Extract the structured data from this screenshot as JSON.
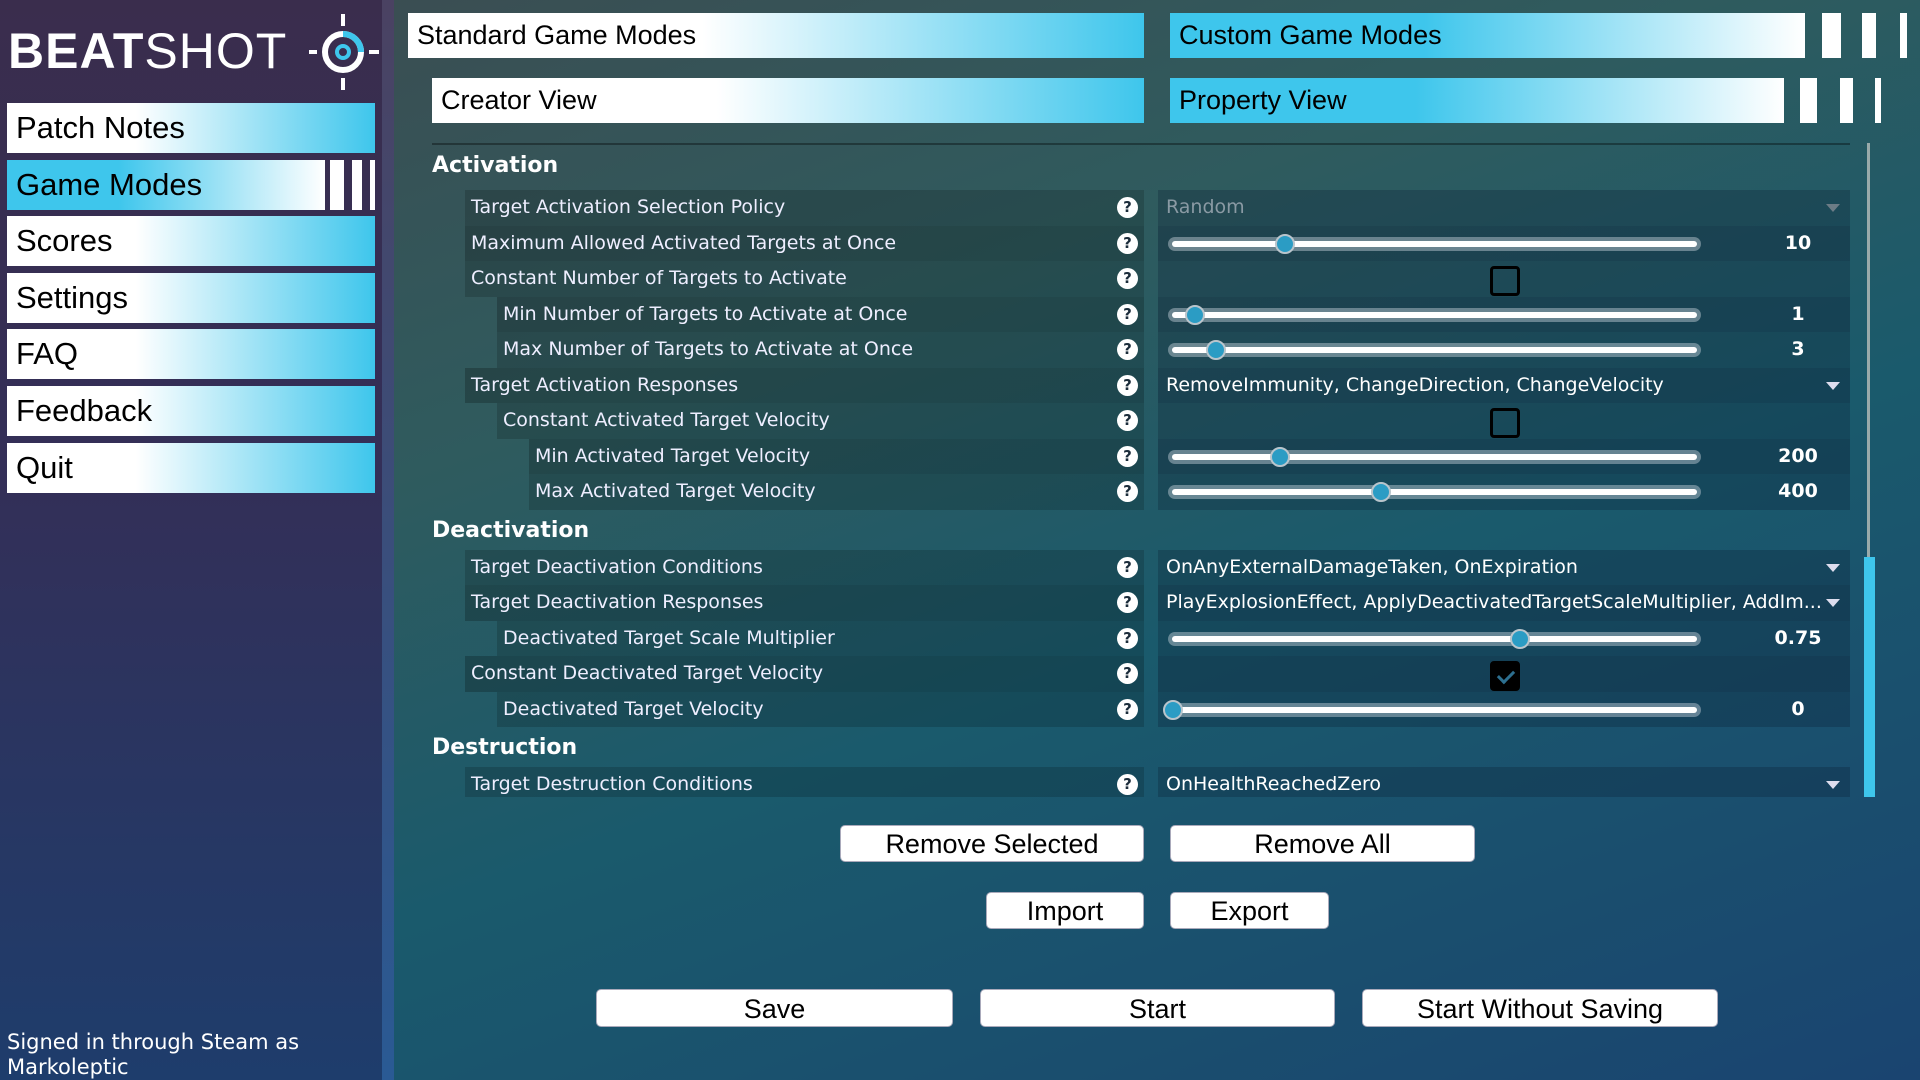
{
  "brand": {
    "bold": "BEAT",
    "light": "SHOT"
  },
  "sidebar": {
    "items": [
      {
        "label": "Patch Notes",
        "active": false
      },
      {
        "label": "Game Modes",
        "active": true
      },
      {
        "label": "Scores",
        "active": false
      },
      {
        "label": "Settings",
        "active": false
      },
      {
        "label": "FAQ",
        "active": false
      },
      {
        "label": "Feedback",
        "active": false
      },
      {
        "label": "Quit",
        "active": false
      }
    ],
    "signed_in": "Signed in through Steam as",
    "username": "Markoleptic"
  },
  "tabs": {
    "standard": "Standard Game Modes",
    "custom": "Custom Game Modes",
    "creator": "Creator View",
    "property": "Property View"
  },
  "sections": [
    {
      "title": "Activation",
      "rows": [
        {
          "label": "Target Activation Selection Policy",
          "indent": 0,
          "type": "dropdown",
          "value": "Random",
          "disabled": true
        },
        {
          "label": "Maximum Allowed Activated Targets at Once",
          "indent": 0,
          "type": "slider",
          "value": "10",
          "fill": 0.22
        },
        {
          "label": "Constant Number of Targets to Activate",
          "indent": 0,
          "type": "checkbox",
          "checked": false
        },
        {
          "label": "Min Number of Targets to Activate at Once",
          "indent": 1,
          "type": "slider",
          "value": "1",
          "fill": 0.05
        },
        {
          "label": "Max Number of Targets to Activate at Once",
          "indent": 1,
          "type": "slider",
          "value": "3",
          "fill": 0.09
        },
        {
          "label": "Target Activation Responses",
          "indent": 0,
          "type": "dropdown",
          "value": "RemoveImmunity, ChangeDirection, ChangeVelocity"
        },
        {
          "label": "Constant Activated Target Velocity",
          "indent": 1,
          "type": "checkbox",
          "checked": false
        },
        {
          "label": "Min Activated Target Velocity",
          "indent": 2,
          "type": "slider",
          "value": "200",
          "fill": 0.21
        },
        {
          "label": "Max Activated Target Velocity",
          "indent": 2,
          "type": "slider",
          "value": "400",
          "fill": 0.4
        }
      ]
    },
    {
      "title": "Deactivation",
      "rows": [
        {
          "label": "Target Deactivation Conditions",
          "indent": 0,
          "type": "dropdown",
          "value": "OnAnyExternalDamageTaken, OnExpiration"
        },
        {
          "label": "Target Deactivation Responses",
          "indent": 0,
          "type": "dropdown",
          "value": "PlayExplosionEffect, ApplyDeactivatedTargetScaleMultiplier, AddIm..."
        },
        {
          "label": "Deactivated Target Scale Multiplier",
          "indent": 1,
          "type": "slider",
          "value": "0.75",
          "fill": 0.66
        },
        {
          "label": "Constant Deactivated Target Velocity",
          "indent": 0,
          "type": "checkbox",
          "checked": true
        },
        {
          "label": "Deactivated Target Velocity",
          "indent": 1,
          "type": "slider",
          "value": "0",
          "fill": 0.01
        }
      ]
    },
    {
      "title": "Destruction",
      "rows": [
        {
          "label": "Target Destruction Conditions",
          "indent": 0,
          "type": "dropdown",
          "value": "OnHealthReachedZero"
        }
      ]
    }
  ],
  "help_glyph": "?",
  "buttons": {
    "remove_selected": "Remove Selected",
    "remove_all": "Remove All",
    "import": "Import",
    "export": "Export",
    "save": "Save",
    "start": "Start",
    "start_without_saving": "Start Without Saving"
  },
  "colors": {
    "accent": "#3ec6ec",
    "thumb": "#2b9cc4"
  }
}
